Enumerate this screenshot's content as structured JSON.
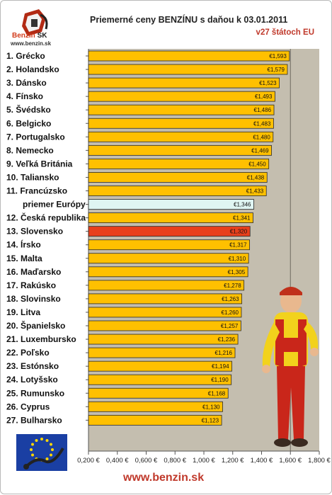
{
  "logo": {
    "brand": "Benzin",
    "suffix": "SK",
    "url": "www.benzin.sk"
  },
  "title": "Priemerné ceny BENZÍNU s daňou k 03.01.2011",
  "subtitle": "v27 štátoch EU",
  "footer_url": "www.benzin.sk",
  "colors": {
    "bar": "#ffc000",
    "highlight": "#e8401c",
    "average": "#dff5f2",
    "average_label": "#3e9bd6",
    "highlight_label": "#d9451e",
    "plot_bg": "#c4beaf"
  },
  "icons": {
    "logo": "fuel-pump-logo-icon",
    "flag": "eu-flag-icon",
    "mascot": "fuel-mechanic-figure"
  },
  "chart_data": {
    "type": "bar",
    "orientation": "horizontal",
    "title": "Priemerné ceny BENZÍNU s daňou k 03.01.2011",
    "subtitle": "v27 štátoch EU",
    "xlim": [
      0.2,
      1.8
    ],
    "xticks": [
      "0,200 €",
      "0,400 €",
      "0,600 €",
      "0,800 €",
      "1,000 €",
      "1,200 €",
      "1,400 €",
      "1,600 €",
      "1,800 €"
    ],
    "grid": "vertical at 1,600 € only",
    "categories": [
      "1. Grécko",
      "2. Holandsko",
      "3. Dánsko",
      "4. Fínsko",
      "5. Švédsko",
      "6. Belgicko",
      "7. Portugalsko",
      "8. Nemecko",
      "9. Veľká Británia",
      "10. Taliansko",
      "11. Francúzsko",
      "priemer Európy",
      "12. Česká republika",
      "13. Slovensko",
      "14. Írsko",
      "15. Malta",
      "16. Maďarsko",
      "17. Rakúsko",
      "18. Slovinsko",
      "19. Litva",
      "20. Španielsko",
      "21. Luxembursko",
      "22. Poľsko",
      "23. Estónsko",
      "24. Lotyšsko",
      "25. Rumunsko",
      "26. Cyprus",
      "27. Bulharsko"
    ],
    "values": [
      1.593,
      1.579,
      1.523,
      1.493,
      1.486,
      1.483,
      1.48,
      1.469,
      1.45,
      1.438,
      1.433,
      1.346,
      1.341,
      1.32,
      1.317,
      1.31,
      1.305,
      1.278,
      1.263,
      1.26,
      1.257,
      1.236,
      1.216,
      1.194,
      1.19,
      1.168,
      1.13,
      1.123
    ],
    "value_labels": [
      "€1,593",
      "€1,579",
      "€1,523",
      "€1,493",
      "€1,486",
      "€1,483",
      "€1,480",
      "€1,469",
      "€1,450",
      "€1,438",
      "€1,433",
      "€1,346",
      "€1,341",
      "€1,320",
      "€1,317",
      "€1,310",
      "€1,305",
      "€1,278",
      "€1,263",
      "€1,260",
      "€1,257",
      "€1,236",
      "€1,216",
      "€1,194",
      "€1,190",
      "€1,168",
      "€1,130",
      "€1,123"
    ],
    "highlight_index": 13,
    "average_index": 11
  }
}
